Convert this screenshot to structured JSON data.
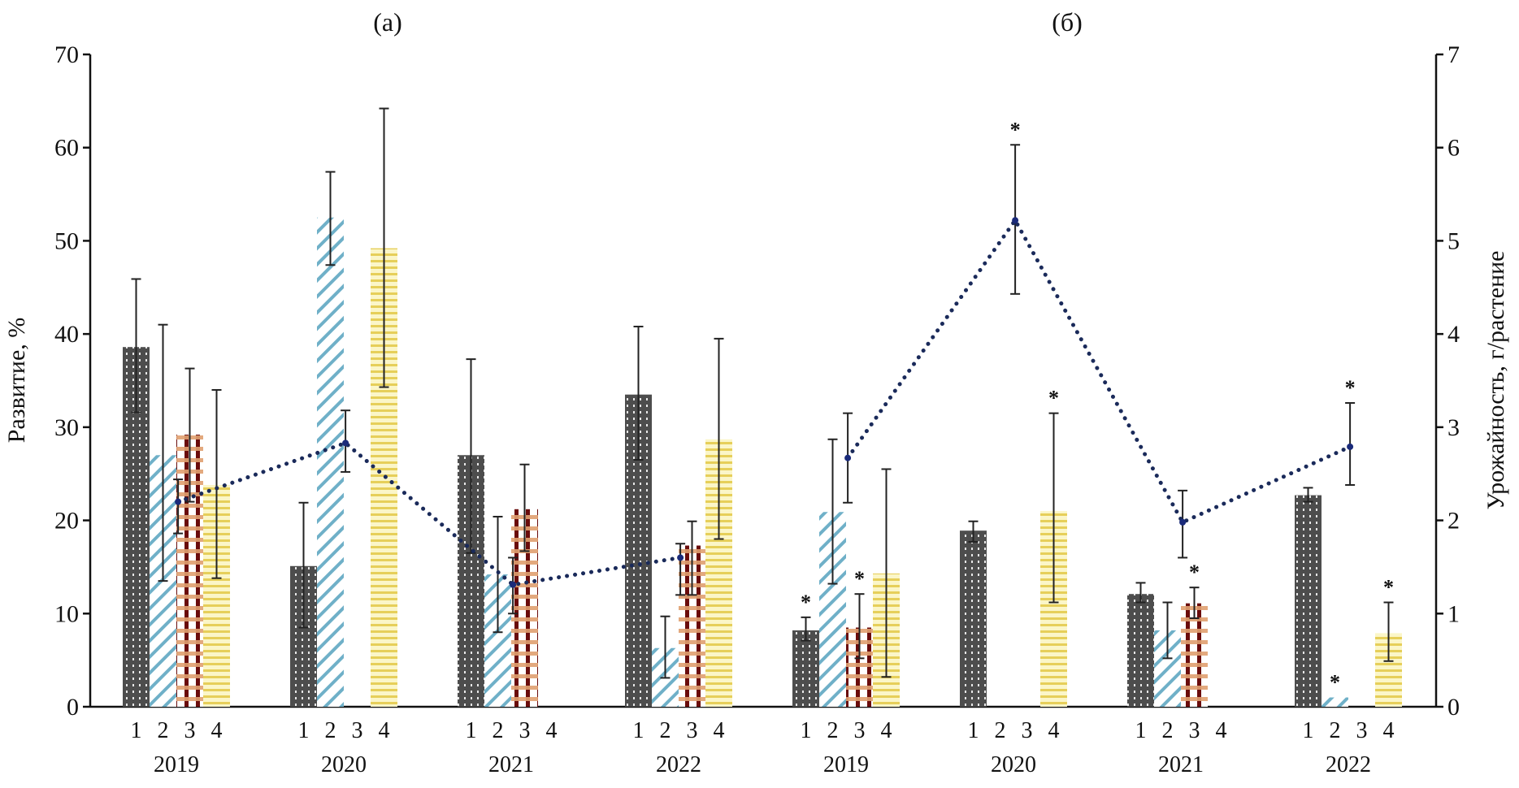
{
  "chart_data": {
    "type": "bar",
    "panels": [
      {
        "label": "(a)",
        "axis": "left",
        "groups": [
          {
            "year": "2019",
            "bars": [
              {
                "category": "1",
                "value": 38.6,
                "err": [
                  31.6,
                  45.9
                ],
                "star": false
              },
              {
                "category": "2",
                "value": 27.0,
                "err": [
                  13.5,
                  41.0
                ],
                "star": false
              },
              {
                "category": "3",
                "value": 29.2,
                "err": [
                  22.0,
                  36.3
                ],
                "star": false
              },
              {
                "category": "4",
                "value": 23.8,
                "err": [
                  13.8,
                  34.0
                ],
                "star": false
              }
            ],
            "yield": {
              "value": 2.2,
              "err": [
                1.86,
                2.44
              ],
              "star": false
            }
          },
          {
            "year": "2020",
            "bars": [
              {
                "category": "1",
                "value": 15.1,
                "err": [
                  8.5,
                  21.9
                ],
                "star": false
              },
              {
                "category": "2",
                "value": 52.5,
                "err": [
                  47.4,
                  57.4
                ],
                "star": false
              },
              {
                "category": "3",
                "value": 0,
                "err": null,
                "star": false
              },
              {
                "category": "4",
                "value": 49.2,
                "err": [
                  34.3,
                  64.2
                ],
                "star": false
              }
            ],
            "yield": {
              "value": 2.83,
              "err": [
                2.52,
                3.18
              ],
              "star": false
            }
          },
          {
            "year": "2021",
            "bars": [
              {
                "category": "1",
                "value": 27.0,
                "err": [
                  16.5,
                  37.3
                ],
                "star": false
              },
              {
                "category": "2",
                "value": 14.2,
                "err": [
                  8.0,
                  20.4
                ],
                "star": false
              },
              {
                "category": "3",
                "value": 21.2,
                "err": [
                  16.7,
                  26.0
                ],
                "star": false
              },
              {
                "category": "4",
                "value": 0,
                "err": null,
                "star": false
              }
            ],
            "yield": {
              "value": 1.31,
              "err": [
                1.0,
                1.6
              ],
              "star": false
            }
          },
          {
            "year": "2022",
            "bars": [
              {
                "category": "1",
                "value": 33.5,
                "err": [
                  26.5,
                  40.8
                ],
                "star": false
              },
              {
                "category": "2",
                "value": 6.3,
                "err": [
                  3.1,
                  9.7
                ],
                "star": false
              },
              {
                "category": "3",
                "value": 17.3,
                "err": [
                  12.0,
                  19.9
                ],
                "star": false
              },
              {
                "category": "4",
                "value": 28.7,
                "err": [
                  18.0,
                  39.5
                ],
                "star": false
              }
            ],
            "yield": {
              "value": 1.6,
              "err": [
                1.2,
                1.75
              ],
              "star": false
            }
          }
        ]
      },
      {
        "label": "(б)",
        "axis": "right",
        "groups": [
          {
            "year": "2019",
            "bars": [
              {
                "category": "1",
                "value": 0.82,
                "err": [
                  0.71,
                  0.96
                ],
                "star": true
              },
              {
                "category": "2",
                "value": 2.09,
                "err": [
                  1.32,
                  2.87
                ],
                "star": false
              },
              {
                "category": "3",
                "value": 0.85,
                "err": [
                  0.52,
                  1.21
                ],
                "star": true
              },
              {
                "category": "4",
                "value": 1.43,
                "err": [
                  0.32,
                  2.55
                ],
                "star": false
              }
            ],
            "yield": {
              "value": 2.67,
              "err": [
                2.19,
                3.15
              ],
              "star": false
            }
          },
          {
            "year": "2020",
            "bars": [
              {
                "category": "1",
                "value": 1.89,
                "err": [
                  1.77,
                  1.99
                ],
                "star": false
              },
              {
                "category": "2",
                "value": 0,
                "err": null,
                "star": false
              },
              {
                "category": "3",
                "value": 0,
                "err": null,
                "star": false
              },
              {
                "category": "4",
                "value": 2.1,
                "err": [
                  1.12,
                  3.15
                ],
                "star": true
              }
            ],
            "yield": {
              "value": 5.22,
              "err": [
                4.43,
                6.03
              ],
              "star": true
            }
          },
          {
            "year": "2021",
            "bars": [
              {
                "category": "1",
                "value": 1.21,
                "err": [
                  1.12,
                  1.33
                ],
                "star": false
              },
              {
                "category": "2",
                "value": 0.82,
                "err": [
                  0.52,
                  1.12
                ],
                "star": false
              },
              {
                "category": "3",
                "value": 1.11,
                "err": [
                  0.95,
                  1.28
                ],
                "star": true
              },
              {
                "category": "4",
                "value": 0,
                "err": null,
                "star": false
              }
            ],
            "yield": {
              "value": 1.98,
              "err": [
                1.6,
                2.32
              ],
              "star": false
            }
          },
          {
            "year": "2022",
            "bars": [
              {
                "category": "1",
                "value": 2.27,
                "err": [
                  2.2,
                  2.35
                ],
                "star": false
              },
              {
                "category": "2",
                "value": 0.1,
                "err": null,
                "star": true
              },
              {
                "category": "3",
                "value": 0,
                "err": null,
                "star": false
              },
              {
                "category": "4",
                "value": 0.79,
                "err": [
                  0.49,
                  1.12
                ],
                "star": true
              }
            ],
            "yield": {
              "value": 2.79,
              "err": [
                2.38,
                3.26
              ],
              "star": true
            }
          }
        ]
      }
    ],
    "series_styles": [
      {
        "category": "1",
        "name": "1",
        "pattern": "dark-dotted",
        "color": "#4a4a4a"
      },
      {
        "category": "2",
        "name": "2",
        "pattern": "diagonal-hatch",
        "color": "#6fb0c8"
      },
      {
        "category": "3",
        "name": "3",
        "pattern": "checkered",
        "color": "#7a1010"
      },
      {
        "category": "4",
        "name": "4",
        "pattern": "horizontal-lines",
        "color": "#e8d860"
      }
    ],
    "line_series": {
      "name": "Урожайность",
      "color": "#1a2a5a",
      "style": "dotted"
    },
    "ylabel_left": "Развитие, %",
    "ylabel_right": "Урожайность, г/растение",
    "ylim_left": [
      0,
      70
    ],
    "ylim_right": [
      0,
      7
    ],
    "yticks_left": [
      "0",
      "10",
      "20",
      "30",
      "40",
      "50",
      "60",
      "70"
    ],
    "yticks_right": [
      "0",
      "1",
      "2",
      "3",
      "4",
      "5",
      "6",
      "7"
    ],
    "star_symbol": "*",
    "grid": false,
    "legend": "none"
  }
}
